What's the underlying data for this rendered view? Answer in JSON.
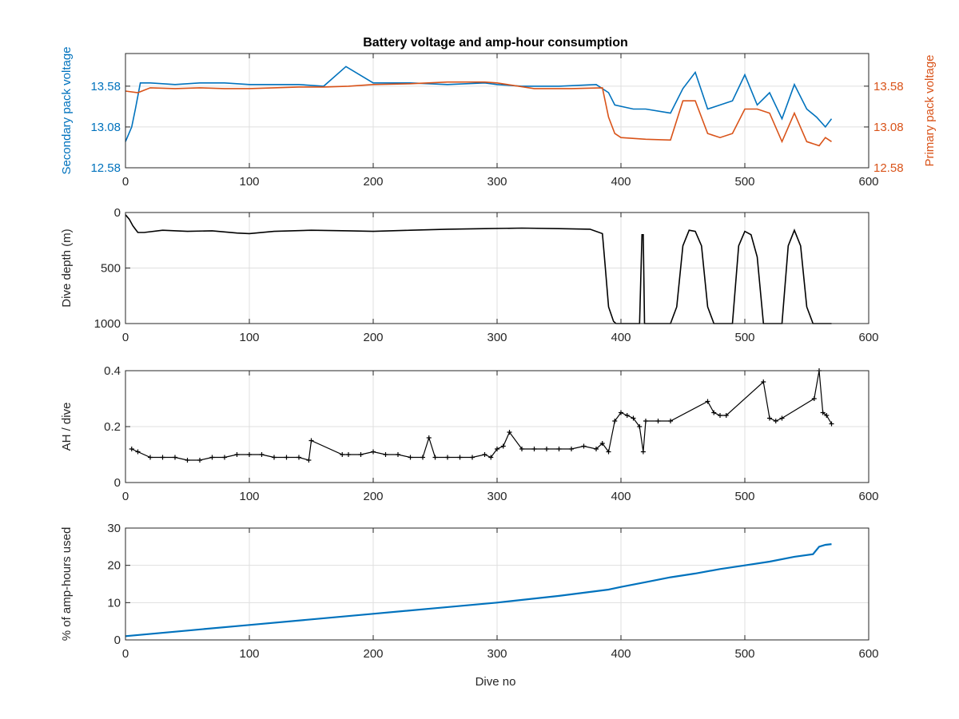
{
  "chart_data": [
    {
      "type": "line",
      "title": "Battery voltage and amp-hour consumption",
      "xlabel": "",
      "xlim": [
        0,
        600
      ],
      "x_ticks": [
        "0",
        "100",
        "200",
        "300",
        "400",
        "500",
        "600"
      ],
      "grid": true,
      "y_left": {
        "label": "Secondary pack voltage",
        "ylim": [
          12.58,
          13.98
        ],
        "ticks": [
          "12.58",
          "13.08",
          "13.58"
        ],
        "color": "#0072BD"
      },
      "y_right": {
        "label": "Primary pack voltage",
        "ylim": [
          12.58,
          13.98
        ],
        "ticks": [
          "12.58",
          "13.08",
          "13.58"
        ],
        "color": "#D95319"
      },
      "series": [
        {
          "axis": "left",
          "color": "#0072BD",
          "x": [
            0,
            5,
            8,
            12,
            20,
            40,
            60,
            80,
            100,
            120,
            140,
            160,
            178,
            200,
            230,
            260,
            290,
            300,
            320,
            350,
            380,
            390,
            395,
            410,
            420,
            440,
            450,
            460,
            470,
            480,
            490,
            500,
            510,
            520,
            530,
            540,
            550,
            558,
            565,
            570
          ],
          "y": [
            12.9,
            13.08,
            13.3,
            13.62,
            13.62,
            13.6,
            13.62,
            13.62,
            13.6,
            13.6,
            13.6,
            13.58,
            13.82,
            13.62,
            13.62,
            13.6,
            13.62,
            13.6,
            13.58,
            13.58,
            13.6,
            13.5,
            13.35,
            13.3,
            13.3,
            13.25,
            13.55,
            13.75,
            13.3,
            13.35,
            13.4,
            13.72,
            13.35,
            13.5,
            13.18,
            13.6,
            13.3,
            13.2,
            13.08,
            13.18
          ]
        },
        {
          "axis": "right",
          "color": "#D95319",
          "x": [
            0,
            10,
            20,
            40,
            60,
            80,
            100,
            120,
            140,
            160,
            180,
            200,
            230,
            260,
            290,
            300,
            330,
            360,
            385,
            390,
            395,
            400,
            420,
            440,
            450,
            460,
            470,
            480,
            490,
            500,
            510,
            520,
            530,
            540,
            550,
            560,
            565,
            570
          ],
          "y": [
            13.52,
            13.5,
            13.56,
            13.55,
            13.56,
            13.55,
            13.55,
            13.56,
            13.57,
            13.57,
            13.58,
            13.6,
            13.61,
            13.63,
            13.63,
            13.62,
            13.55,
            13.55,
            13.56,
            13.2,
            13.0,
            12.95,
            12.93,
            12.92,
            13.4,
            13.4,
            13.0,
            12.95,
            13.0,
            13.3,
            13.3,
            13.25,
            12.9,
            13.25,
            12.9,
            12.85,
            12.95,
            12.9
          ]
        }
      ]
    },
    {
      "type": "line",
      "title": "",
      "xlabel": "",
      "ylabel": "Dive depth (m)",
      "xlim": [
        0,
        600
      ],
      "ylim": [
        0,
        1000
      ],
      "y_reversed": true,
      "x_ticks": [
        "0",
        "100",
        "200",
        "300",
        "400",
        "500",
        "600"
      ],
      "y_ticks": [
        "0",
        "500",
        "1000"
      ],
      "grid": true,
      "series": [
        {
          "color": "#000000",
          "x": [
            0,
            3,
            6,
            8,
            10,
            15,
            30,
            50,
            70,
            90,
            100,
            120,
            150,
            180,
            200,
            230,
            260,
            290,
            320,
            350,
            375,
            385,
            387,
            390,
            394,
            396,
            400,
            415,
            417,
            418,
            419,
            420,
            422,
            430,
            440,
            445,
            450,
            455,
            460,
            465,
            470,
            475,
            490,
            495,
            500,
            505,
            510,
            515,
            530,
            535,
            540,
            545,
            550,
            555,
            570
          ],
          "y": [
            20,
            60,
            120,
            150,
            180,
            180,
            160,
            170,
            165,
            185,
            190,
            170,
            160,
            165,
            170,
            160,
            150,
            145,
            140,
            145,
            150,
            190,
            450,
            850,
            980,
            1000,
            1000,
            1000,
            200,
            200,
            1000,
            1000,
            1000,
            1000,
            1000,
            850,
            300,
            160,
            170,
            300,
            850,
            1000,
            1000,
            300,
            170,
            200,
            400,
            1000,
            1000,
            300,
            160,
            300,
            850,
            1000,
            1000
          ]
        }
      ]
    },
    {
      "type": "scatter",
      "title": "",
      "xlabel": "",
      "ylabel": "AH / dive",
      "xlim": [
        0,
        600
      ],
      "ylim": [
        0,
        0.4
      ],
      "x_ticks": [
        "0",
        "100",
        "200",
        "300",
        "400",
        "500",
        "600"
      ],
      "y_ticks": [
        "0",
        "0.2",
        "0.4"
      ],
      "grid": true,
      "series": [
        {
          "color": "#000000",
          "marker": "+",
          "x": [
            5,
            10,
            20,
            30,
            40,
            50,
            60,
            70,
            80,
            90,
            100,
            110,
            120,
            130,
            140,
            148,
            150,
            175,
            180,
            190,
            200,
            210,
            220,
            230,
            240,
            245,
            250,
            260,
            270,
            280,
            290,
            295,
            300,
            305,
            310,
            320,
            330,
            340,
            350,
            360,
            370,
            380,
            385,
            390,
            395,
            400,
            405,
            410,
            415,
            418,
            420,
            430,
            440,
            470,
            475,
            480,
            485,
            515,
            520,
            525,
            530,
            556,
            560,
            563,
            566,
            570
          ],
          "y": [
            0.12,
            0.11,
            0.09,
            0.09,
            0.09,
            0.08,
            0.08,
            0.09,
            0.09,
            0.1,
            0.1,
            0.1,
            0.09,
            0.09,
            0.09,
            0.08,
            0.15,
            0.1,
            0.1,
            0.1,
            0.11,
            0.1,
            0.1,
            0.09,
            0.09,
            0.16,
            0.09,
            0.09,
            0.09,
            0.09,
            0.1,
            0.09,
            0.12,
            0.13,
            0.18,
            0.12,
            0.12,
            0.12,
            0.12,
            0.12,
            0.13,
            0.12,
            0.14,
            0.11,
            0.22,
            0.25,
            0.24,
            0.23,
            0.2,
            0.11,
            0.22,
            0.22,
            0.22,
            0.29,
            0.25,
            0.24,
            0.24,
            0.36,
            0.23,
            0.22,
            0.23,
            0.3,
            0.4,
            0.25,
            0.24,
            0.21
          ]
        }
      ]
    },
    {
      "type": "line",
      "title": "",
      "xlabel": "Dive no",
      "ylabel": "% of amp-hours used",
      "xlim": [
        0,
        600
      ],
      "ylim": [
        0,
        30
      ],
      "x_ticks": [
        "0",
        "100",
        "200",
        "300",
        "400",
        "500",
        "600"
      ],
      "y_ticks": [
        "0",
        "10",
        "20",
        "30"
      ],
      "grid": true,
      "series": [
        {
          "color": "#0072BD",
          "x": [
            0,
            50,
            100,
            150,
            200,
            250,
            300,
            350,
            390,
            400,
            420,
            440,
            460,
            480,
            500,
            520,
            540,
            555,
            560,
            565,
            570
          ],
          "y": [
            1,
            2.5,
            4,
            5.5,
            7,
            8.5,
            10,
            11.8,
            13.5,
            14.2,
            15.5,
            16.8,
            17.8,
            19,
            20,
            21,
            22.3,
            23,
            25,
            25.5,
            25.7
          ]
        }
      ]
    }
  ]
}
